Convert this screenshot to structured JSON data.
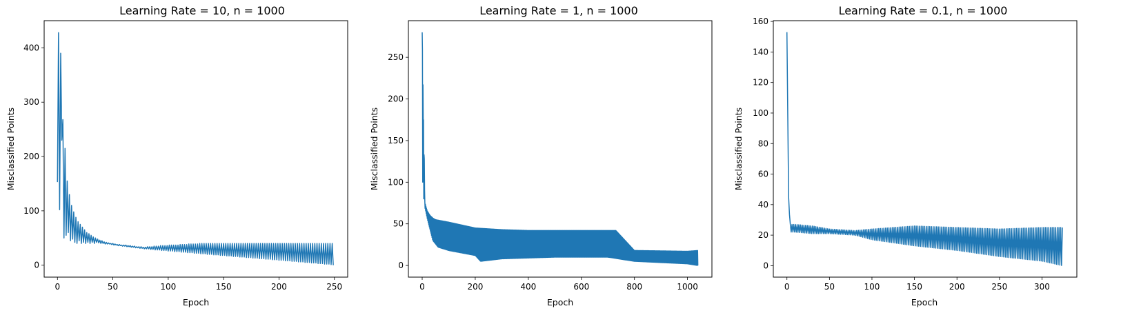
{
  "figure": {
    "background": "#ffffff",
    "line_color": "#1f77b4"
  },
  "chart_data": [
    {
      "type": "line",
      "title": "Learning Rate = 10, n = 1000",
      "xlabel": "Epoch",
      "ylabel": "Misclassified Points",
      "xlim": [
        -12,
        262
      ],
      "ylim": [
        -22,
        450
      ],
      "xticks": [
        0,
        50,
        100,
        150,
        200,
        250
      ],
      "yticks": [
        0,
        100,
        200,
        300,
        400
      ],
      "grid": false,
      "series": [
        {
          "color": "#1f77b4",
          "n_points": 250,
          "x_start": 0,
          "x_end": 249,
          "values": [
            153,
            428,
            102,
            390,
            230,
            268,
            50,
            215,
            55,
            155,
            60,
            130,
            45,
            110,
            48,
            98,
            42,
            88,
            40,
            80,
            45,
            75,
            40,
            70,
            42,
            65,
            40,
            60,
            42,
            58,
            40,
            55,
            42,
            52,
            40,
            50,
            42,
            48,
            41,
            46,
            40,
            45,
            40,
            43,
            39,
            42,
            39,
            41,
            39,
            40,
            38,
            40,
            37,
            39,
            37,
            38,
            36,
            38,
            36,
            37,
            35,
            37,
            35,
            37,
            34,
            36,
            34,
            36,
            33,
            35,
            33,
            35,
            32,
            34,
            32,
            34,
            31,
            34,
            31,
            33,
            30,
            33,
            30,
            34,
            30,
            34,
            29,
            34,
            29,
            35,
            28,
            35,
            28,
            35,
            28,
            36,
            27,
            36,
            27,
            36,
            27,
            36,
            26,
            37,
            26,
            37,
            26,
            37,
            25,
            37,
            25,
            37,
            25,
            38,
            24,
            38,
            24,
            38,
            24,
            38,
            23,
            39,
            23,
            39,
            23,
            39,
            22,
            39,
            22,
            39,
            22,
            40,
            21,
            40,
            21,
            40,
            21,
            40,
            20,
            40,
            20,
            40,
            20,
            40,
            19,
            40,
            19,
            40,
            19,
            40,
            18,
            40,
            18,
            40,
            18,
            40,
            17,
            40,
            17,
            40,
            17,
            40,
            16,
            40,
            16,
            40,
            16,
            40,
            15,
            40,
            15,
            40,
            15,
            40,
            14,
            40,
            14,
            40,
            14,
            40,
            13,
            40,
            13,
            40,
            13,
            40,
            12,
            40,
            12,
            40,
            12,
            40,
            11,
            40,
            11,
            40,
            11,
            40,
            10,
            40,
            10,
            40,
            10,
            40,
            9,
            40,
            9,
            40,
            9,
            40,
            8,
            40,
            8,
            40,
            8,
            40,
            7,
            40,
            7,
            40,
            7,
            40,
            6,
            40,
            6,
            40,
            6,
            40,
            5,
            40,
            5,
            40,
            5,
            40,
            4,
            40,
            4,
            40,
            4,
            40,
            3,
            40,
            3,
            40,
            3,
            40,
            2,
            40,
            2,
            40,
            2,
            40,
            1,
            40,
            0
          ]
        }
      ]
    },
    {
      "type": "line",
      "title": "Learning Rate = 1, n = 1000",
      "xlabel": "Epoch",
      "ylabel": "Misclassified Points",
      "xlim": [
        -52,
        1092
      ],
      "ylim": [
        -14,
        294
      ],
      "xticks": [
        0,
        200,
        400,
        600,
        800,
        1000
      ],
      "yticks": [
        0,
        50,
        100,
        150,
        200,
        250
      ],
      "grid": false,
      "series": [
        {
          "color": "#1f77b4",
          "n_points": 1040,
          "x_start": 0,
          "x_end": 1039,
          "keypoints": [
            [
              0,
              280
            ],
            [
              2,
              100
            ],
            [
              4,
              170
            ],
            [
              6,
              80
            ],
            [
              8,
              128
            ],
            [
              10,
              76
            ],
            [
              15,
              70
            ],
            [
              20,
              65
            ],
            [
              30,
              60
            ],
            [
              40,
              57
            ],
            [
              50,
              55
            ],
            [
              100,
              52
            ],
            [
              200,
              45
            ],
            [
              300,
              43
            ],
            [
              400,
              42
            ],
            [
              500,
              42
            ],
            [
              600,
              42
            ],
            [
              700,
              42
            ],
            [
              730,
              42
            ],
            [
              800,
              18
            ],
            [
              1000,
              17
            ],
            [
              1039,
              18
            ]
          ],
          "lower_envelope": [
            [
              0,
              280
            ],
            [
              10,
              70
            ],
            [
              20,
              55
            ],
            [
              40,
              30
            ],
            [
              60,
              22
            ],
            [
              100,
              18
            ],
            [
              150,
              15
            ],
            [
              200,
              12
            ],
            [
              220,
              5
            ],
            [
              300,
              8
            ],
            [
              400,
              9
            ],
            [
              500,
              10
            ],
            [
              600,
              10
            ],
            [
              700,
              10
            ],
            [
              800,
              5
            ],
            [
              1000,
              2
            ],
            [
              1039,
              0
            ]
          ]
        }
      ]
    },
    {
      "type": "line",
      "title": "Learning Rate = 0.1, n = 1000",
      "xlabel": "Epoch",
      "ylabel": "Misclassified Points",
      "xlim": [
        -16,
        341
      ],
      "ylim": [
        -7.5,
        160.5
      ],
      "xticks": [
        0,
        50,
        100,
        150,
        200,
        250,
        300
      ],
      "yticks": [
        0,
        20,
        40,
        60,
        80,
        100,
        120,
        140,
        160
      ],
      "grid": false,
      "series": [
        {
          "color": "#1f77b4",
          "n_points": 325,
          "x_start": 0,
          "x_end": 324,
          "keypoints": [
            [
              0,
              153
            ],
            [
              2,
              45
            ],
            [
              4,
              27
            ],
            [
              10,
              27
            ],
            [
              30,
              26
            ],
            [
              50,
              24
            ],
            [
              80,
              23
            ],
            [
              100,
              24
            ],
            [
              150,
              26
            ],
            [
              200,
              25
            ],
            [
              250,
              24
            ],
            [
              300,
              25
            ],
            [
              324,
              25
            ]
          ],
          "lower_envelope": [
            [
              0,
              153
            ],
            [
              2,
              45
            ],
            [
              4,
              22
            ],
            [
              10,
              22
            ],
            [
              30,
              21
            ],
            [
              50,
              21
            ],
            [
              80,
              20
            ],
            [
              100,
              17
            ],
            [
              150,
              13
            ],
            [
              200,
              10
            ],
            [
              250,
              6
            ],
            [
              300,
              3
            ],
            [
              324,
              0
            ]
          ]
        }
      ]
    }
  ]
}
